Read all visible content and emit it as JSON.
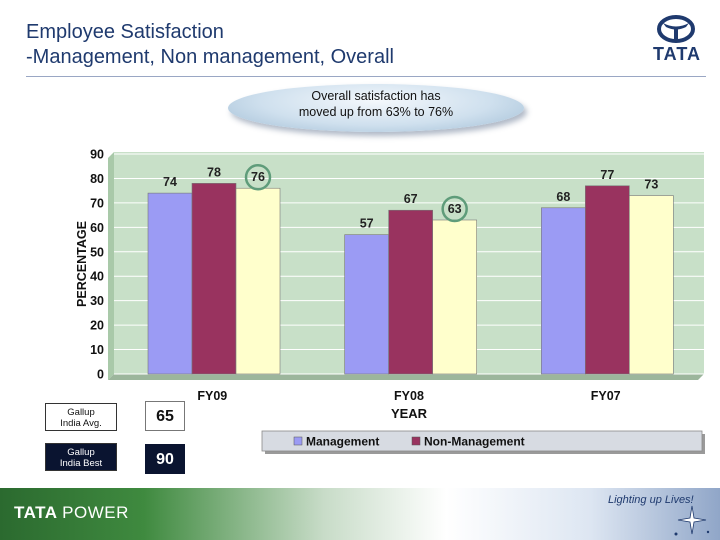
{
  "header": {
    "title_line1": "Employee Satisfaction",
    "title_line2": "-Management, Non management, Overall",
    "logo_text": "TATA"
  },
  "callout": {
    "line1": "Overall satisfaction has",
    "line2": "moved up from 63% to 76%"
  },
  "chart_data": {
    "type": "bar",
    "categories": [
      "FY09",
      "FY08",
      "FY07"
    ],
    "series": [
      {
        "name": "Management",
        "values": [
          74,
          57,
          68
        ],
        "color": "#9b9bf4"
      },
      {
        "name": "Non-Management",
        "values": [
          78,
          67,
          77
        ],
        "color": "#99335f"
      },
      {
        "name": "Overall",
        "values": [
          76,
          63,
          73
        ],
        "color": "#ffffcc"
      }
    ],
    "ylabel": "PERCENTAGE",
    "xlabel": "YEAR",
    "ylim": [
      0,
      90
    ],
    "yticks": [
      0,
      10,
      20,
      30,
      40,
      50,
      60,
      70,
      80,
      90
    ],
    "grid": true,
    "legend": "bottom",
    "legend_labels": [
      "Management",
      "Non-Management"
    ],
    "highlighted": [
      {
        "category": "FY09",
        "series": "Overall"
      },
      {
        "category": "FY08",
        "series": "Overall"
      }
    ],
    "plot_bg": "#c8e0c8",
    "highlight_color": "#5f9c7a"
  },
  "gallup": {
    "avg_label_line1": "Gallup",
    "avg_label_line2": "India Avg.",
    "avg_value": "65",
    "best_label_line1": "Gallup",
    "best_label_line2": "India Best",
    "best_value": "90"
  },
  "footer": {
    "brand_bold": "TATA",
    "brand_thin": "POWER",
    "tagline": "Lighting up Lives!"
  }
}
